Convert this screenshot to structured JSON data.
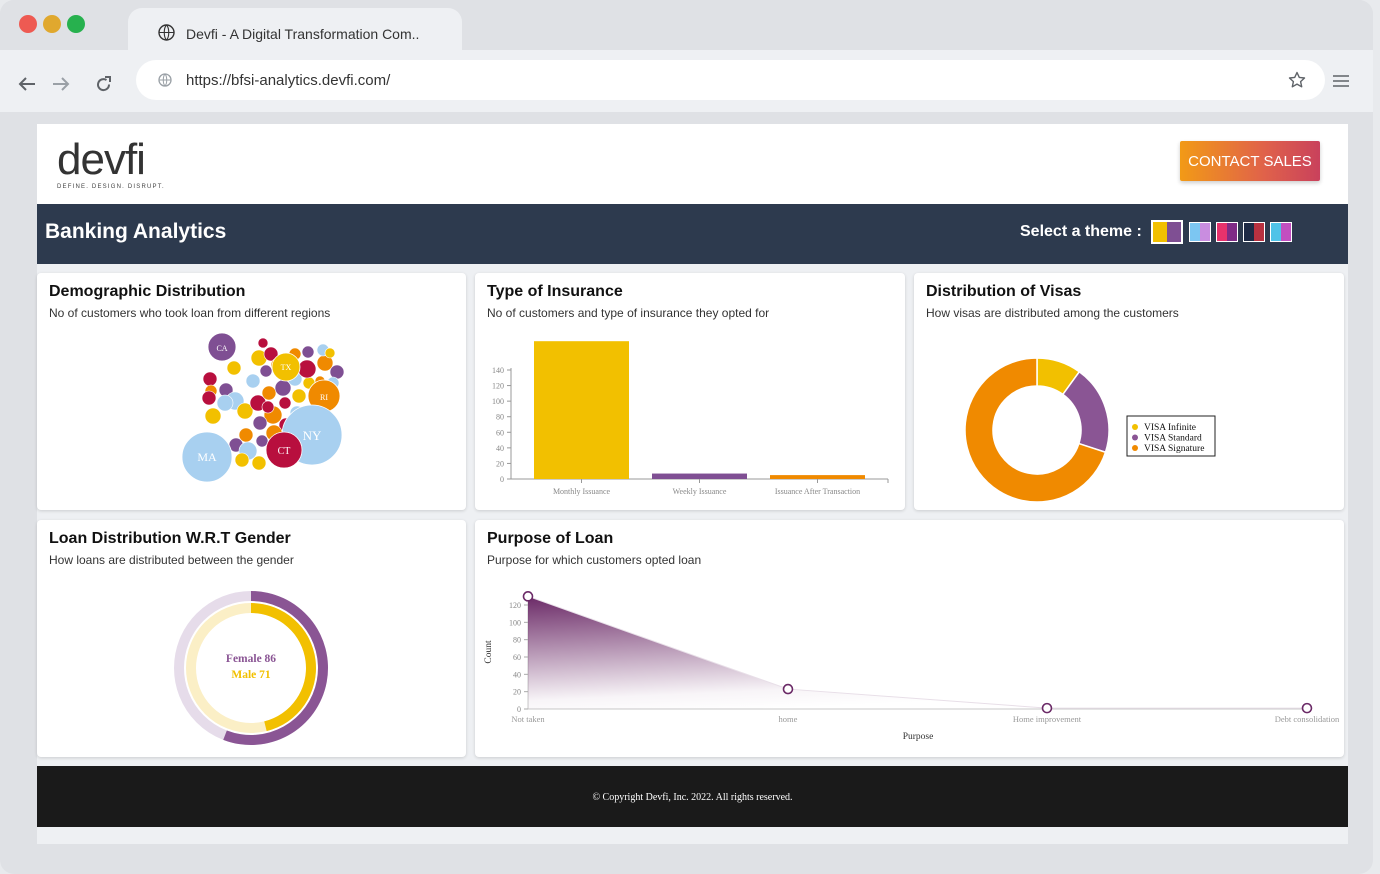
{
  "browser": {
    "tab_title": "Devfi - A Digital Transformation Com..",
    "url": "https://bfsi-analytics.devfi.com/"
  },
  "header": {
    "logo_text": "devfi",
    "logo_tagline": "DEFINE. DESIGN. DISRUPT.",
    "contact_label": "CONTACT SALES"
  },
  "band": {
    "title": "Banking Analytics",
    "theme_label": "Select a theme :",
    "themes": [
      [
        "#f2c000",
        "#7f4f93"
      ],
      [
        "#7cc6f2",
        "#c98de0"
      ],
      [
        "#e6326c",
        "#7f2b86"
      ],
      [
        "#1e2a45",
        "#b83140"
      ],
      [
        "#4fc3e8",
        "#c24fc0"
      ]
    ]
  },
  "cards": {
    "demographic": {
      "title": "Demographic Distribution",
      "subtitle": "No of customers who took loan from different regions"
    },
    "insurance": {
      "title": "Type of Insurance",
      "subtitle": "No of customers and type of insurance they opted for"
    },
    "visas": {
      "title": "Distribution of Visas",
      "subtitle": "How visas are distributed among the customers"
    },
    "gender": {
      "title": "Loan Distribution W.R.T Gender",
      "subtitle": "How loans are distributed between the gender"
    },
    "purpose": {
      "title": "Purpose of Loan",
      "subtitle": "Purpose for which customers opted loan"
    }
  },
  "chart_data": [
    {
      "type": "bubble",
      "labels_visible": [
        "CA",
        "TX",
        "RI",
        "NY",
        "MA",
        "CT",
        "IL"
      ],
      "colors": [
        "#7f4f93",
        "#f2c000",
        "#f08a00",
        "#a8d0f0",
        "#b80f3e"
      ]
    },
    {
      "type": "bar",
      "categories": [
        "Monthly Issuance",
        "Weekly Issuance",
        "Issuance After Transaction"
      ],
      "values": [
        177,
        7,
        5
      ],
      "yticks": [
        0,
        20,
        40,
        60,
        80,
        100,
        120,
        140
      ],
      "colors": [
        "#f2c000",
        "#7f4f93",
        "#f08a00"
      ]
    },
    {
      "type": "pie",
      "legend": [
        "VISA Infinite",
        "VISA Standard",
        "VISA Signature"
      ],
      "values": [
        10,
        20,
        70
      ],
      "colors": [
        "#f2c000",
        "#8a5594",
        "#f08a00"
      ]
    },
    {
      "type": "pie",
      "series": [
        {
          "name": "Female",
          "value": 86,
          "color": "#8a5594"
        },
        {
          "name": "Male",
          "value": 71,
          "color": "#f2c000"
        }
      ],
      "center_labels": [
        "Female 86",
        "Male 71"
      ]
    },
    {
      "type": "area",
      "x": [
        "Not taken",
        "home",
        "Home improvement",
        "Debt consolidation"
      ],
      "values": [
        130,
        23,
        1,
        1
      ],
      "yticks": [
        0,
        20,
        40,
        60,
        80,
        100,
        120
      ],
      "xlabel": "Purpose",
      "ylabel": "Count",
      "color": "#6b2a67"
    }
  ],
  "footer": {
    "copyright": "© Copyright Devfi, Inc. 2022. All rights reserved."
  }
}
